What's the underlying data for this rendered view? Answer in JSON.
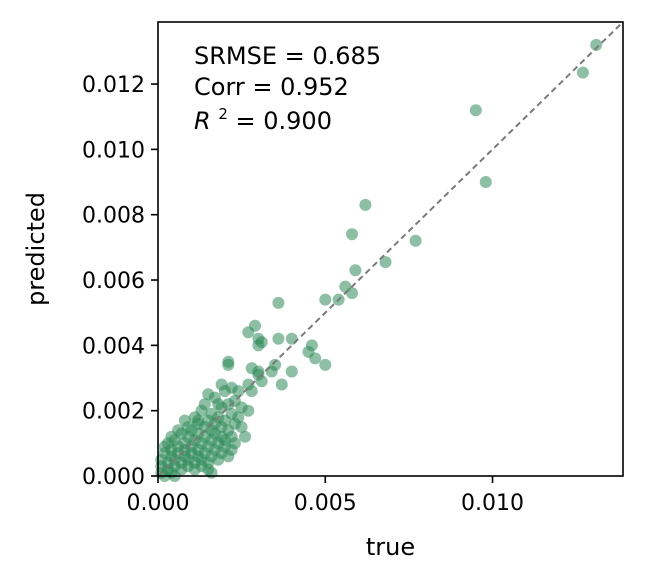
{
  "chart_data": {
    "type": "scatter",
    "title": "",
    "xlabel": "true",
    "ylabel": "predicted",
    "xlim": [
      0,
      0.0139
    ],
    "ylim": [
      0,
      0.0139
    ],
    "x_ticks": [
      0.0,
      0.005,
      0.01
    ],
    "x_tick_labels": [
      "0.000",
      "0.005",
      "0.010"
    ],
    "y_ticks": [
      0.0,
      0.002,
      0.004,
      0.006,
      0.008,
      0.01,
      0.012
    ],
    "y_tick_labels": [
      "0.000",
      "0.002",
      "0.004",
      "0.006",
      "0.008",
      "0.010",
      "0.012"
    ],
    "grid": false,
    "point_color": "#2e8b57",
    "reference_line": {
      "style": "dashed",
      "color": "#7a7a7a",
      "from": [
        0,
        0
      ],
      "to": [
        0.0139,
        0.0139
      ]
    },
    "annotations": {
      "srmse": "SRMSE = 0.685",
      "corr": "Corr = 0.952",
      "r2_prefix": "R",
      "r2_sup": "2",
      "r2_suffix": " = 0.900"
    },
    "points": [
      [
        0.0131,
        0.0132
      ],
      [
        0.0127,
        0.01235
      ],
      [
        0.0095,
        0.0112
      ],
      [
        0.0098,
        0.009
      ],
      [
        0.0062,
        0.0083
      ],
      [
        0.0058,
        0.0074
      ],
      [
        0.0077,
        0.0072
      ],
      [
        0.0059,
        0.0063
      ],
      [
        0.0068,
        0.00655
      ],
      [
        0.0056,
        0.0058
      ],
      [
        0.0058,
        0.0056
      ],
      [
        0.005,
        0.0054
      ],
      [
        0.0054,
        0.0054
      ],
      [
        0.0036,
        0.0053
      ],
      [
        0.0029,
        0.0046
      ],
      [
        0.0027,
        0.0044
      ],
      [
        0.003,
        0.0042
      ],
      [
        0.0036,
        0.0042
      ],
      [
        0.004,
        0.0042
      ],
      [
        0.0031,
        0.0041
      ],
      [
        0.003,
        0.004
      ],
      [
        0.0046,
        0.004
      ],
      [
        0.0045,
        0.0038
      ],
      [
        0.0021,
        0.0035
      ],
      [
        0.0021,
        0.0034
      ],
      [
        0.0047,
        0.0036
      ],
      [
        0.005,
        0.0034
      ],
      [
        0.0035,
        0.0034
      ],
      [
        0.0028,
        0.0033
      ],
      [
        0.003,
        0.0032
      ],
      [
        0.0034,
        0.0032
      ],
      [
        0.004,
        0.0032
      ],
      [
        0.003,
        0.0031
      ],
      [
        0.0027,
        0.0028
      ],
      [
        0.0019,
        0.0028
      ],
      [
        0.0037,
        0.0028
      ],
      [
        0.0031,
        0.0029
      ],
      [
        0.0022,
        0.0027
      ],
      [
        0.0024,
        0.0026
      ],
      [
        0.0015,
        0.0025
      ],
      [
        0.002,
        0.0026
      ],
      [
        0.0028,
        0.0026
      ],
      [
        0.0017,
        0.0024
      ],
      [
        0.0023,
        0.0023
      ],
      [
        0.0021,
        0.0022
      ],
      [
        0.0025,
        0.0021
      ],
      [
        0.0014,
        0.0022
      ],
      [
        0.0019,
        0.0021
      ],
      [
        0.0013,
        0.002
      ],
      [
        0.0027,
        0.002
      ],
      [
        0.0016,
        0.0019
      ],
      [
        0.0022,
        0.0019
      ],
      [
        0.0011,
        0.0018
      ],
      [
        0.0018,
        0.0018
      ],
      [
        0.0024,
        0.0018
      ],
      [
        0.0008,
        0.0017
      ],
      [
        0.0015,
        0.0017
      ],
      [
        0.002,
        0.0017
      ],
      [
        0.0012,
        0.0016
      ],
      [
        0.0017,
        0.0016
      ],
      [
        0.0009,
        0.0015
      ],
      [
        0.0014,
        0.0015
      ],
      [
        0.0019,
        0.0015
      ],
      [
        0.0006,
        0.0014
      ],
      [
        0.001,
        0.0014
      ],
      [
        0.0016,
        0.0014
      ],
      [
        0.0021,
        0.0014
      ],
      [
        0.0007,
        0.0013
      ],
      [
        0.0012,
        0.0013
      ],
      [
        0.0017,
        0.0013
      ],
      [
        0.0022,
        0.0012
      ],
      [
        0.0004,
        0.0012
      ],
      [
        0.0009,
        0.0012
      ],
      [
        0.0014,
        0.0012
      ],
      [
        0.0019,
        0.0012
      ],
      [
        0.0005,
        0.0011
      ],
      [
        0.0011,
        0.0011
      ],
      [
        0.0016,
        0.0011
      ],
      [
        0.002,
        0.0011
      ],
      [
        0.0003,
        0.001
      ],
      [
        0.0008,
        0.001
      ],
      [
        0.0013,
        0.001
      ],
      [
        0.0018,
        0.001
      ],
      [
        0.0023,
        0.001
      ],
      [
        0.0002,
        0.0009
      ],
      [
        0.0006,
        0.0009
      ],
      [
        0.001,
        0.0009
      ],
      [
        0.0015,
        0.0009
      ],
      [
        0.002,
        0.0009
      ],
      [
        0.0004,
        0.0008
      ],
      [
        0.0008,
        0.0008
      ],
      [
        0.0012,
        0.0008
      ],
      [
        0.0017,
        0.0008
      ],
      [
        0.0022,
        0.0008
      ],
      [
        0.0002,
        0.0007
      ],
      [
        0.0006,
        0.0007
      ],
      [
        0.001,
        0.0007
      ],
      [
        0.0014,
        0.0007
      ],
      [
        0.0019,
        0.0007
      ],
      [
        0.0004,
        0.0006
      ],
      [
        0.0008,
        0.0006
      ],
      [
        0.0012,
        0.0006
      ],
      [
        0.0016,
        0.0006
      ],
      [
        0.0021,
        0.0006
      ],
      [
        0.0001,
        0.0005
      ],
      [
        0.0005,
        0.0005
      ],
      [
        0.0009,
        0.0005
      ],
      [
        0.0013,
        0.0005
      ],
      [
        0.0018,
        0.0005
      ],
      [
        0.0003,
        0.0004
      ],
      [
        0.0007,
        0.0004
      ],
      [
        0.0011,
        0.0004
      ],
      [
        0.0015,
        0.0004
      ],
      [
        0.0001,
        0.0003
      ],
      [
        0.0005,
        0.0003
      ],
      [
        0.0009,
        0.0003
      ],
      [
        0.0013,
        0.0003
      ],
      [
        0.0003,
        0.0002
      ],
      [
        0.0007,
        0.0002
      ],
      [
        0.0011,
        0.0002
      ],
      [
        0.0001,
        0.0001
      ],
      [
        0.0004,
        0.0001
      ],
      [
        0.0002,
        0.0
      ],
      [
        0.0005,
        0.0
      ],
      [
        0.0012,
        0.0017
      ],
      [
        0.0018,
        0.0022
      ],
      [
        0.0025,
        0.0015
      ],
      [
        0.0026,
        0.0012
      ],
      [
        0.0023,
        0.0016
      ],
      [
        0.0015,
        0.0002
      ],
      [
        0.0016,
        0.0001
      ]
    ]
  }
}
